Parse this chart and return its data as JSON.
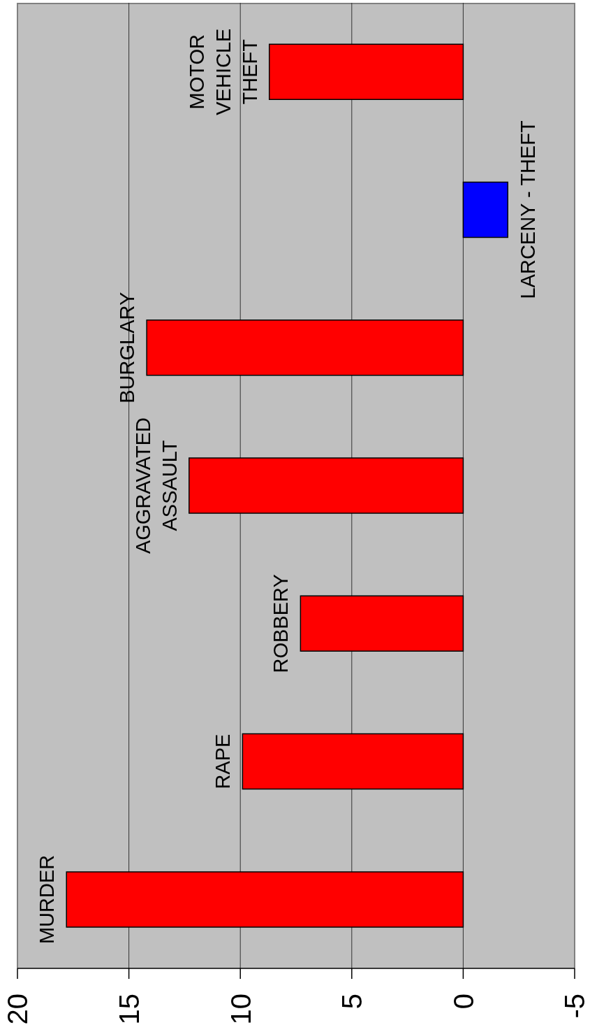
{
  "chart_data": {
    "type": "bar",
    "orientation": "horizontal",
    "categories": [
      "MOTOR VEHICLE THEFT",
      "LARCENY - THEFT",
      "BURGLARY",
      "AGGRAVATED ASSAULT",
      "ROBBERY",
      "RAPE",
      "MURDER"
    ],
    "values": [
      8.7,
      -2.0,
      14.2,
      12.3,
      7.3,
      9.9,
      17.8
    ],
    "colors": [
      "#ff0000",
      "#0000ff",
      "#ff0000",
      "#ff0000",
      "#ff0000",
      "#ff0000",
      "#ff0000"
    ],
    "xlim": [
      20,
      -5
    ],
    "xticks": [
      20,
      15,
      10,
      5,
      0,
      -5
    ],
    "grid": "x"
  }
}
